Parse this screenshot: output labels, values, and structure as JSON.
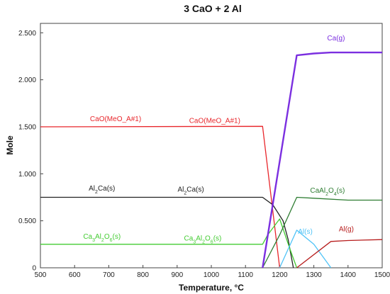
{
  "chart_data": {
    "type": "line",
    "title": "3 CaO + 2 Al",
    "xlabel": "Temperature, °C",
    "ylabel": "Mole",
    "xlim": [
      500,
      1500
    ],
    "ylim": [
      0,
      2.6
    ],
    "grid": false,
    "x_ticks": [
      "500",
      "600",
      "700",
      "800",
      "900",
      "1000",
      "1100",
      "1200",
      "1300",
      "1400",
      "1500"
    ],
    "y_ticks": [
      "0",
      "0.500",
      "1.000",
      "1.500",
      "2.000",
      "2.500"
    ],
    "series": [
      {
        "name": "CaO(MeO_A#1)",
        "color": "#e8262b",
        "points": [
          [
            500,
            1.5
          ],
          [
            1150,
            1.505
          ],
          [
            1200,
            0.0
          ]
        ],
        "labels": [
          {
            "text": "CaO(MeO_A#1)",
            "x": 720,
            "y": 1.56
          },
          {
            "text": "CaO(MeO_A#1)",
            "x": 1010,
            "y": 1.54
          }
        ]
      },
      {
        "name": "Al2Ca(s)",
        "color": "#222222",
        "points": [
          [
            500,
            0.75
          ],
          [
            1150,
            0.75
          ],
          [
            1180,
            0.67
          ],
          [
            1210,
            0.5
          ],
          [
            1225,
            0.3
          ],
          [
            1240,
            0.0
          ]
        ],
        "labels": [
          {
            "text": "Al2Ca(s)",
            "x": 680,
            "y": 0.82
          },
          {
            "text": "Al2Ca(s)",
            "x": 940,
            "y": 0.81
          }
        ]
      },
      {
        "name": "Ca3Al2O6(s)",
        "color": "#44cc33",
        "points": [
          [
            500,
            0.25
          ],
          [
            1150,
            0.25
          ],
          [
            1165,
            0.35
          ],
          [
            1200,
            0.52
          ],
          [
            1230,
            0.2
          ],
          [
            1250,
            0.0
          ]
        ],
        "labels": [
          {
            "text": "Ca3Al2O6(s)",
            "x": 680,
            "y": 0.31
          },
          {
            "text": "Ca3Al2O6(s)",
            "x": 975,
            "y": 0.29
          }
        ]
      },
      {
        "name": "CaAl2O4(s)",
        "color": "#2e7d32",
        "points": [
          [
            1150,
            0.0
          ],
          [
            1200,
            0.35
          ],
          [
            1250,
            0.75
          ],
          [
            1300,
            0.74
          ],
          [
            1400,
            0.72
          ],
          [
            1500,
            0.72
          ]
        ],
        "labels": [
          {
            "text": "CaAl2O4(s)",
            "x": 1340,
            "y": 0.8
          }
        ]
      },
      {
        "name": "Al(s)",
        "color": "#4fc3f7",
        "points": [
          [
            1200,
            0.0
          ],
          [
            1250,
            0.4
          ],
          [
            1300,
            0.25
          ],
          [
            1350,
            0.0
          ]
        ],
        "labels": [
          {
            "text": "Al(s)",
            "x": 1275,
            "y": 0.36
          }
        ]
      },
      {
        "name": "Al(g)",
        "color": "#b71c1c",
        "points": [
          [
            1250,
            0.0
          ],
          [
            1350,
            0.28
          ],
          [
            1400,
            0.29
          ],
          [
            1500,
            0.3
          ]
        ],
        "labels": [
          {
            "text": "Al(g)",
            "x": 1395,
            "y": 0.39
          }
        ]
      },
      {
        "name": "Ca(g)",
        "color": "#7b2fe0",
        "points": [
          [
            1150,
            0.0
          ],
          [
            1250,
            2.26
          ],
          [
            1300,
            2.28
          ],
          [
            1350,
            2.29
          ],
          [
            1400,
            2.29
          ],
          [
            1500,
            2.29
          ]
        ],
        "labels": [
          {
            "text": "Ca(g)",
            "x": 1365,
            "y": 2.42
          }
        ]
      }
    ]
  }
}
